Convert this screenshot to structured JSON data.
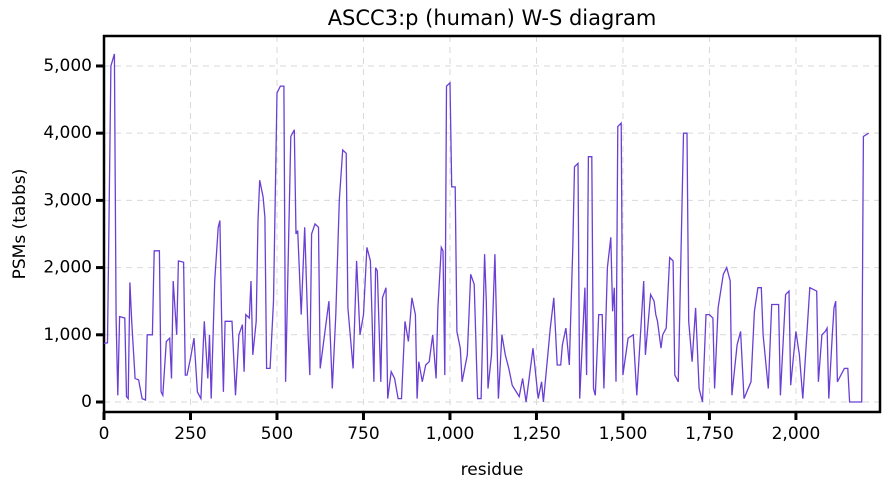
{
  "chart_data": {
    "type": "line",
    "title": "ASCC3:p (human) W-S diagram",
    "x_label": "residue",
    "y_label": "PSMs (tabbs)",
    "xlim": [
      0,
      2243
    ],
    "ylim": [
      -149,
      5446
    ],
    "xticks": [
      0,
      250,
      500,
      750,
      {
        "value": 1000,
        "label": "1,000"
      },
      {
        "value": 1250,
        "label": "1,250"
      },
      {
        "value": 1500,
        "label": "1,500"
      },
      {
        "value": 1750,
        "label": "1,750"
      },
      {
        "value": 2000,
        "label": "2,000"
      }
    ],
    "yticks": [
      0,
      {
        "value": 1000,
        "label": "1,000"
      },
      {
        "value": 2000,
        "label": "2,000"
      },
      {
        "value": 3000,
        "label": "3,000"
      },
      {
        "value": 4000,
        "label": "4,000"
      },
      {
        "value": 5000,
        "label": "5,000"
      }
    ],
    "grid": true,
    "x": [
      0,
      10,
      20,
      30,
      35,
      40,
      45,
      60,
      65,
      70,
      75,
      80,
      90,
      100,
      110,
      120,
      125,
      140,
      145,
      160,
      165,
      170,
      180,
      190,
      195,
      200,
      210,
      215,
      230,
      235,
      240,
      250,
      260,
      270,
      280,
      290,
      300,
      305,
      310,
      320,
      330,
      335,
      340,
      345,
      350,
      370,
      380,
      390,
      400,
      405,
      410,
      420,
      425,
      430,
      440,
      445,
      450,
      460,
      465,
      470,
      480,
      490,
      500,
      510,
      520,
      525,
      530,
      540,
      550,
      555,
      560,
      570,
      580,
      590,
      595,
      600,
      610,
      620,
      625,
      640,
      650,
      660,
      670,
      680,
      690,
      700,
      705,
      720,
      730,
      740,
      750,
      760,
      770,
      780,
      785,
      790,
      800,
      805,
      815,
      820,
      830,
      840,
      850,
      860,
      870,
      880,
      890,
      900,
      905,
      910,
      920,
      930,
      940,
      950,
      960,
      965,
      975,
      980,
      985,
      990,
      1000,
      1005,
      1015,
      1020,
      1030,
      1035,
      1050,
      1060,
      1070,
      1080,
      1090,
      1100,
      1105,
      1110,
      1120,
      1130,
      1140,
      1150,
      1160,
      1170,
      1180,
      1200,
      1210,
      1220,
      1240,
      1255,
      1265,
      1270,
      1290,
      1300,
      1310,
      1320,
      1325,
      1335,
      1345,
      1355,
      1360,
      1370,
      1375,
      1390,
      1395,
      1400,
      1410,
      1415,
      1420,
      1430,
      1440,
      1445,
      1455,
      1465,
      1470,
      1475,
      1480,
      1485,
      1495,
      1500,
      1515,
      1530,
      1540,
      1560,
      1565,
      1580,
      1590,
      1595,
      1600,
      1610,
      1615,
      1625,
      1635,
      1645,
      1650,
      1660,
      1665,
      1675,
      1685,
      1690,
      1700,
      1710,
      1720,
      1730,
      1740,
      1750,
      1760,
      1765,
      1775,
      1790,
      1800,
      1810,
      1815,
      1830,
      1840,
      1850,
      1870,
      1880,
      1890,
      1900,
      1905,
      1920,
      1930,
      1950,
      1955,
      1970,
      1980,
      1985,
      2000,
      2010,
      2020,
      2040,
      2060,
      2065,
      2075,
      2085,
      2090,
      2095,
      2105,
      2110,
      2115,
      2120,
      2130,
      2140,
      2150,
      2155,
      2180,
      2190,
      2195,
      2210
    ],
    "series": [
      {
        "name": "PSMs",
        "color": "#6a3fd4",
        "values": [
          870,
          880,
          5000,
          5180,
          1250,
          100,
          1270,
          1250,
          80,
          50,
          1780,
          1200,
          350,
          330,
          50,
          30,
          1000,
          1000,
          2250,
          2250,
          150,
          100,
          900,
          950,
          350,
          1800,
          1000,
          2100,
          2080,
          400,
          400,
          650,
          950,
          150,
          50,
          1200,
          350,
          1000,
          50,
          1800,
          2600,
          2700,
          1250,
          150,
          1200,
          1200,
          100,
          1000,
          1150,
          450,
          1300,
          1250,
          1800,
          700,
          1200,
          2700,
          3300,
          3050,
          2750,
          500,
          500,
          1500,
          4600,
          4700,
          4700,
          300,
          1550,
          3950,
          4050,
          2500,
          2550,
          1300,
          2600,
          1000,
          400,
          2500,
          2650,
          2600,
          500,
          1100,
          1500,
          200,
          1300,
          3000,
          3750,
          3700,
          1400,
          500,
          2100,
          1000,
          1300,
          2300,
          2100,
          300,
          2000,
          1950,
          300,
          1550,
          1700,
          50,
          450,
          350,
          50,
          50,
          1200,
          900,
          1550,
          1300,
          50,
          600,
          300,
          550,
          600,
          1000,
          350,
          1400,
          2300,
          2250,
          400,
          4700,
          4750,
          3200,
          3200,
          1050,
          800,
          300,
          700,
          1900,
          1750,
          50,
          50,
          2200,
          1500,
          200,
          700,
          2200,
          50,
          1000,
          700,
          500,
          250,
          80,
          350,
          0,
          800,
          50,
          300,
          0,
          1100,
          1550,
          550,
          550,
          850,
          1100,
          550,
          2300,
          3500,
          3550,
          50,
          1700,
          400,
          3650,
          3650,
          200,
          100,
          1300,
          1300,
          200,
          2000,
          2450,
          1350,
          1700,
          300,
          4100,
          4150,
          400,
          950,
          1000,
          100,
          1800,
          700,
          1600,
          1500,
          1300,
          1200,
          800,
          1000,
          1100,
          2150,
          2100,
          400,
          300,
          1500,
          4000,
          4000,
          1200,
          600,
          1400,
          200,
          0,
          1300,
          1300,
          1250,
          200,
          1400,
          1900,
          2000,
          1800,
          100,
          850,
          1050,
          50,
          300,
          1350,
          1700,
          1700,
          1000,
          200,
          1450,
          1450,
          100,
          1600,
          1650,
          250,
          1050,
          700,
          50,
          1700,
          1650,
          300,
          1000,
          1050,
          1100,
          50,
          1000,
          1400,
          1500,
          300,
          400,
          500,
          500,
          0,
          0,
          0,
          3950,
          4000
        ]
      }
    ]
  }
}
